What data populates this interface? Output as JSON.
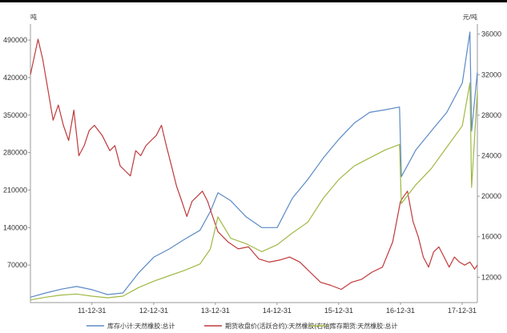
{
  "chart_data": {
    "type": "line",
    "left_unit": "吨",
    "right_unit": "元/吨",
    "x_tick_labels": [
      "11-12-31",
      "12-12-31",
      "13-12-31",
      "14-12-31",
      "15-12-31",
      "16-12-31",
      "17-12-31"
    ],
    "left_axis": {
      "ticks": [
        "490000",
        "420000",
        "350000",
        "280000",
        "210000",
        "140000",
        "70000"
      ],
      "ylim": [
        0,
        520000
      ]
    },
    "right_axis": {
      "ticks": [
        "36000",
        "32000",
        "28000",
        "24000",
        "20000",
        "16000",
        "12000"
      ],
      "ylim": [
        9500,
        37000
      ]
    },
    "x_range": [
      "2011-01-01",
      "2018-03-31"
    ],
    "series": [
      {
        "name": "库存小计:天然橡胶:总计",
        "axis": "left",
        "color": "#5b8ac6",
        "points": [
          [
            "2011-01-01",
            10000
          ],
          [
            "2011-04-01",
            18000
          ],
          [
            "2011-07-01",
            25000
          ],
          [
            "2011-10-01",
            30000
          ],
          [
            "2012-01-01",
            24000
          ],
          [
            "2012-04-01",
            15000
          ],
          [
            "2012-07-01",
            18000
          ],
          [
            "2012-10-01",
            55000
          ],
          [
            "2013-01-01",
            85000
          ],
          [
            "2013-04-01",
            100000
          ],
          [
            "2013-07-01",
            118000
          ],
          [
            "2013-10-01",
            135000
          ],
          [
            "2013-12-01",
            170000
          ],
          [
            "2014-01-15",
            205000
          ],
          [
            "2014-04-01",
            190000
          ],
          [
            "2014-07-01",
            160000
          ],
          [
            "2014-10-01",
            140000
          ],
          [
            "2015-01-01",
            140000
          ],
          [
            "2015-04-01",
            195000
          ],
          [
            "2015-07-01",
            230000
          ],
          [
            "2015-10-01",
            270000
          ],
          [
            "2016-01-01",
            305000
          ],
          [
            "2016-04-01",
            335000
          ],
          [
            "2016-07-01",
            355000
          ],
          [
            "2016-10-01",
            360000
          ],
          [
            "2016-12-25",
            365000
          ],
          [
            "2017-01-05",
            235000
          ],
          [
            "2017-04-01",
            285000
          ],
          [
            "2017-07-01",
            320000
          ],
          [
            "2017-10-01",
            355000
          ],
          [
            "2018-01-01",
            410000
          ],
          [
            "2018-02-15",
            505000
          ],
          [
            "2018-02-25",
            320000
          ],
          [
            "2018-03-31",
            430000
          ]
        ]
      },
      {
        "name": "期货收盘价(活跃合约):天然橡胶(右轴)",
        "axis": "right",
        "color": "#c0393b",
        "points": [
          [
            "2011-01-01",
            32000
          ],
          [
            "2011-02-15",
            35500
          ],
          [
            "2011-03-15",
            33500
          ],
          [
            "2011-04-15",
            30500
          ],
          [
            "2011-05-15",
            27500
          ],
          [
            "2011-06-15",
            29000
          ],
          [
            "2011-07-15",
            27000
          ],
          [
            "2011-08-15",
            25500
          ],
          [
            "2011-09-15",
            28500
          ],
          [
            "2011-10-15",
            24000
          ],
          [
            "2011-11-15",
            25000
          ],
          [
            "2011-12-15",
            26500
          ],
          [
            "2012-01-15",
            27000
          ],
          [
            "2012-03-01",
            26000
          ],
          [
            "2012-04-15",
            24500
          ],
          [
            "2012-05-15",
            25000
          ],
          [
            "2012-06-15",
            23000
          ],
          [
            "2012-07-15",
            22500
          ],
          [
            "2012-08-15",
            22000
          ],
          [
            "2012-09-15",
            24500
          ],
          [
            "2012-10-15",
            24000
          ],
          [
            "2012-11-15",
            25000
          ],
          [
            "2012-12-15",
            25500
          ],
          [
            "2013-01-15",
            26000
          ],
          [
            "2013-02-15",
            27000
          ],
          [
            "2013-03-15",
            25000
          ],
          [
            "2013-04-15",
            23000
          ],
          [
            "2013-05-15",
            21000
          ],
          [
            "2013-06-15",
            19500
          ],
          [
            "2013-07-15",
            18000
          ],
          [
            "2013-08-15",
            19500
          ],
          [
            "2013-09-15",
            20000
          ],
          [
            "2013-10-15",
            20500
          ],
          [
            "2013-11-15",
            19500
          ],
          [
            "2013-12-15",
            18000
          ],
          [
            "2014-01-15",
            16500
          ],
          [
            "2014-03-15",
            15500
          ],
          [
            "2014-05-15",
            14800
          ],
          [
            "2014-07-15",
            15000
          ],
          [
            "2014-09-15",
            13800
          ],
          [
            "2014-11-15",
            13500
          ],
          [
            "2015-01-15",
            13700
          ],
          [
            "2015-03-15",
            14000
          ],
          [
            "2015-05-15",
            13500
          ],
          [
            "2015-07-15",
            12500
          ],
          [
            "2015-09-15",
            11500
          ],
          [
            "2015-11-15",
            11200
          ],
          [
            "2016-01-15",
            10800
          ],
          [
            "2016-03-15",
            11500
          ],
          [
            "2016-05-15",
            11800
          ],
          [
            "2016-07-15",
            12500
          ],
          [
            "2016-09-15",
            13000
          ],
          [
            "2016-11-15",
            15500
          ],
          [
            "2016-12-31",
            19500
          ],
          [
            "2017-01-20",
            20000
          ],
          [
            "2017-02-10",
            20500
          ],
          [
            "2017-03-15",
            17500
          ],
          [
            "2017-04-15",
            16000
          ],
          [
            "2017-05-15",
            14000
          ],
          [
            "2017-06-15",
            13000
          ],
          [
            "2017-07-15",
            14500
          ],
          [
            "2017-08-15",
            15000
          ],
          [
            "2017-09-15",
            14000
          ],
          [
            "2017-10-15",
            13000
          ],
          [
            "2017-11-15",
            14000
          ],
          [
            "2017-12-15",
            13500
          ],
          [
            "2018-01-15",
            13200
          ],
          [
            "2018-02-15",
            13500
          ],
          [
            "2018-03-15",
            12800
          ],
          [
            "2018-03-31",
            13200
          ]
        ]
      },
      {
        "name": "库存期货:天然橡胶:总计",
        "axis": "left",
        "color": "#9fb843",
        "points": [
          [
            "2011-01-01",
            5000
          ],
          [
            "2011-04-01",
            10000
          ],
          [
            "2011-07-01",
            14000
          ],
          [
            "2011-10-01",
            16000
          ],
          [
            "2012-01-01",
            12000
          ],
          [
            "2012-04-01",
            9000
          ],
          [
            "2012-07-01",
            12000
          ],
          [
            "2012-10-01",
            28000
          ],
          [
            "2013-01-01",
            40000
          ],
          [
            "2013-04-01",
            50000
          ],
          [
            "2013-07-01",
            60000
          ],
          [
            "2013-10-01",
            72000
          ],
          [
            "2013-12-01",
            100000
          ],
          [
            "2014-01-15",
            160000
          ],
          [
            "2014-04-01",
            120000
          ],
          [
            "2014-07-01",
            110000
          ],
          [
            "2014-10-01",
            95000
          ],
          [
            "2015-01-01",
            108000
          ],
          [
            "2015-04-01",
            130000
          ],
          [
            "2015-07-01",
            150000
          ],
          [
            "2015-10-01",
            195000
          ],
          [
            "2016-01-01",
            230000
          ],
          [
            "2016-04-01",
            255000
          ],
          [
            "2016-07-01",
            270000
          ],
          [
            "2016-10-01",
            285000
          ],
          [
            "2016-12-25",
            295000
          ],
          [
            "2017-01-05",
            185000
          ],
          [
            "2017-04-01",
            220000
          ],
          [
            "2017-07-01",
            250000
          ],
          [
            "2017-10-01",
            290000
          ],
          [
            "2018-01-01",
            330000
          ],
          [
            "2018-02-15",
            410000
          ],
          [
            "2018-02-25",
            215000
          ],
          [
            "2018-03-31",
            395000
          ]
        ]
      }
    ]
  }
}
